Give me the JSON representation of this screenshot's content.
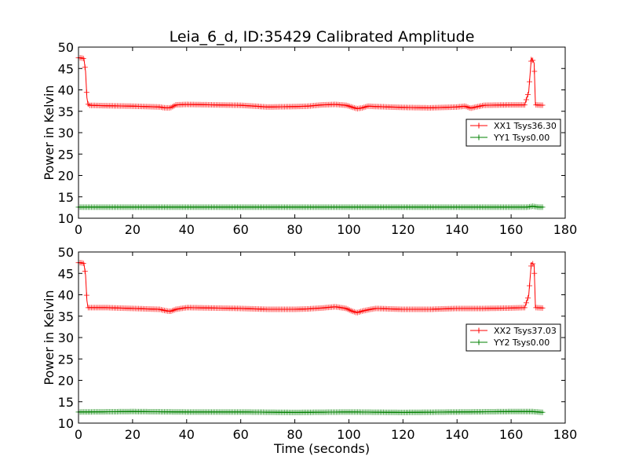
{
  "figure": {
    "title": "Leia_6_d, ID:35429 Calibrated Amplitude",
    "xlabel": "Time (seconds)"
  },
  "chart_data": [
    {
      "type": "line",
      "title": "Leia_6_d, ID:35429 Calibrated Amplitude",
      "xlabel": "",
      "ylabel": "Power in Kelvin",
      "xlim": [
        0,
        180
      ],
      "ylim": [
        10,
        50
      ],
      "xticks": [
        0,
        20,
        40,
        60,
        80,
        100,
        120,
        140,
        160,
        180
      ],
      "yticks": [
        10,
        15,
        20,
        25,
        30,
        35,
        40,
        45,
        50
      ],
      "grid": false,
      "legend_position": "center-right",
      "series": [
        {
          "name": "XX1 Tsys36.30",
          "color": "#ff0000",
          "marker": "+",
          "x": [
            0,
            1,
            2,
            2.6,
            3.1,
            3.5,
            4,
            10,
            20,
            30,
            32,
            34,
            36,
            40,
            50,
            60,
            65,
            70,
            80,
            85,
            90,
            95,
            99,
            101,
            103,
            105,
            107,
            110,
            120,
            130,
            140,
            143,
            145,
            147,
            150,
            160,
            165,
            166.5,
            167.5,
            168.5,
            169,
            172
          ],
          "y": [
            47.5,
            47.5,
            47.3,
            44.3,
            38.2,
            36.7,
            36.4,
            36.3,
            36.2,
            36.0,
            35.8,
            35.8,
            36.5,
            36.6,
            36.5,
            36.4,
            36.2,
            36.0,
            36.1,
            36.2,
            36.5,
            36.6,
            36.4,
            36.0,
            35.6,
            35.8,
            36.2,
            36.1,
            35.9,
            35.8,
            36.0,
            36.2,
            35.7,
            36.0,
            36.4,
            36.5,
            36.5,
            39.5,
            47.5,
            46.3,
            36.5,
            36.4
          ]
        },
        {
          "name": "YY1 Tsys0.00",
          "color": "#008000",
          "marker": "+",
          "x": [
            0,
            20,
            40,
            60,
            80,
            100,
            120,
            140,
            160,
            166,
            168,
            170,
            172
          ],
          "y": [
            12.6,
            12.6,
            12.6,
            12.6,
            12.6,
            12.6,
            12.6,
            12.6,
            12.6,
            12.6,
            12.8,
            12.6,
            12.6
          ]
        }
      ]
    },
    {
      "type": "line",
      "title": "",
      "xlabel": "Time (seconds)",
      "ylabel": "Power in Kelvin",
      "xlim": [
        0,
        180
      ],
      "ylim": [
        10,
        50
      ],
      "xticks": [
        0,
        20,
        40,
        60,
        80,
        100,
        120,
        140,
        160,
        180
      ],
      "yticks": [
        10,
        15,
        20,
        25,
        30,
        35,
        40,
        45,
        50
      ],
      "grid": false,
      "legend_position": "center-right",
      "series": [
        {
          "name": "XX2 Tsys37.03",
          "color": "#ff0000",
          "marker": "+",
          "x": [
            0,
            1,
            2,
            2.6,
            3.1,
            3.5,
            4,
            10,
            20,
            30,
            32,
            34,
            36,
            40,
            50,
            60,
            70,
            80,
            85,
            90,
            95,
            99,
            101,
            103,
            105,
            108,
            110,
            120,
            130,
            140,
            150,
            160,
            165,
            166.5,
            167.5,
            168.5,
            169,
            172
          ],
          "y": [
            47.5,
            47.5,
            47.3,
            44.6,
            38.7,
            37.0,
            37.0,
            37.0,
            36.8,
            36.6,
            36.3,
            36.1,
            36.6,
            37.0,
            36.9,
            36.8,
            36.6,
            36.6,
            36.7,
            36.9,
            37.2,
            36.8,
            36.2,
            35.8,
            36.2,
            36.6,
            36.8,
            36.6,
            36.6,
            36.8,
            36.8,
            36.9,
            37.0,
            39.8,
            47.5,
            47.0,
            37.0,
            36.9
          ]
        },
        {
          "name": "YY2 Tsys0.00",
          "color": "#008000",
          "marker": "+",
          "x": [
            0,
            20,
            40,
            60,
            80,
            100,
            120,
            140,
            160,
            166,
            168,
            170,
            172
          ],
          "y": [
            12.6,
            12.7,
            12.6,
            12.6,
            12.5,
            12.6,
            12.5,
            12.6,
            12.7,
            12.7,
            12.7,
            12.6,
            12.5
          ]
        }
      ]
    }
  ]
}
